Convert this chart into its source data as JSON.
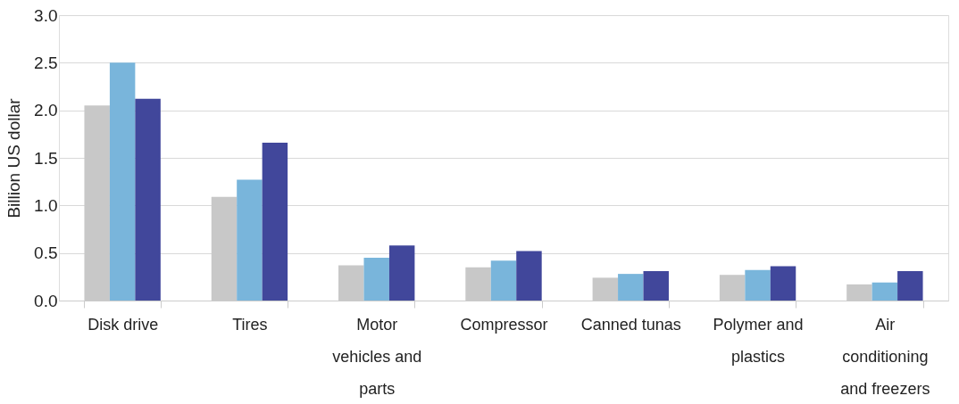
{
  "chart_data": {
    "type": "bar",
    "ylabel": "Billion US dollar",
    "categories": [
      "Disk drive",
      "Tires",
      "Motor vehicles and parts",
      "Compressor",
      "Canned tunas",
      "Polymer and plastics",
      "Air conditioning and freezers"
    ],
    "series": [
      {
        "color": "#c8c8c8",
        "values": [
          2.05,
          1.09,
          0.37,
          0.35,
          0.24,
          0.27,
          0.17
        ]
      },
      {
        "color": "#79b5db",
        "values": [
          2.5,
          1.27,
          0.45,
          0.42,
          0.28,
          0.32,
          0.19
        ]
      },
      {
        "color": "#41479b",
        "values": [
          2.12,
          1.66,
          0.58,
          0.52,
          0.31,
          0.36,
          0.31
        ]
      }
    ],
    "ylim": [
      0,
      3.0
    ],
    "yticks": [
      {
        "value": 0,
        "label": "0.0"
      },
      0.5,
      {
        "value": 1,
        "label": "1.0"
      },
      1.5,
      {
        "value": 2,
        "label": "2.0"
      },
      2.5,
      {
        "value": 3,
        "label": "3.0"
      }
    ],
    "grid": "y",
    "legend": false
  }
}
